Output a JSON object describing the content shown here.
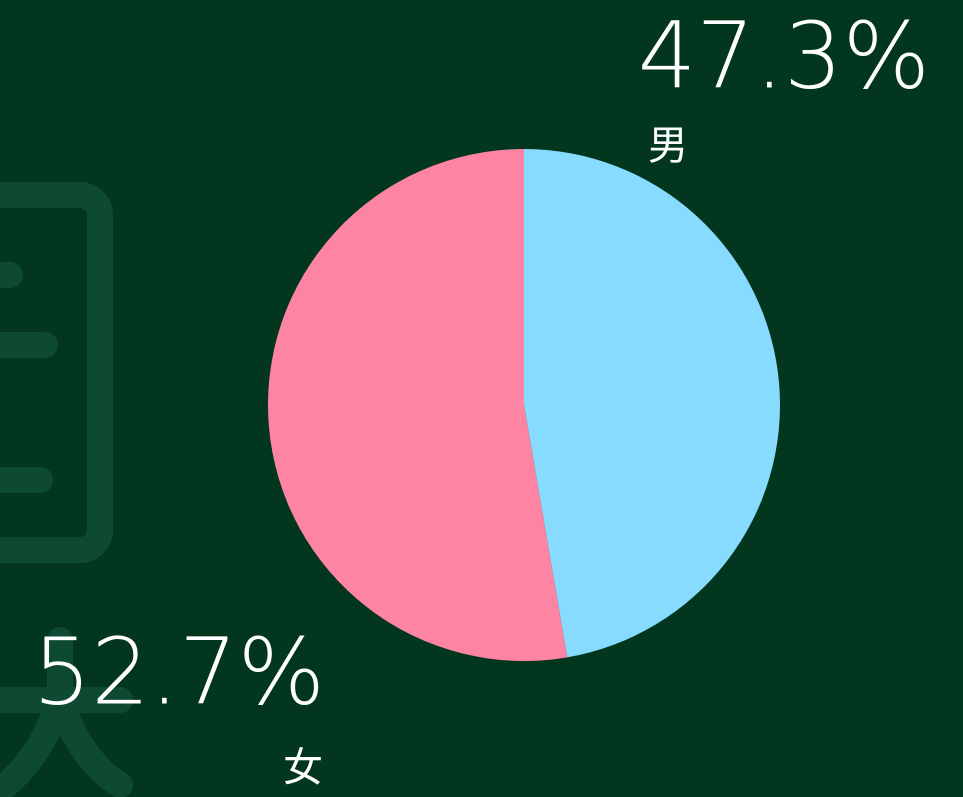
{
  "chart_data": {
    "type": "pie",
    "categories": [
      "男",
      "女"
    ],
    "values": [
      47.3,
      52.7
    ],
    "value_labels": [
      "47.3%",
      "52.7%"
    ],
    "colors": [
      "#87dbfe",
      "#fd84a3"
    ]
  }
}
